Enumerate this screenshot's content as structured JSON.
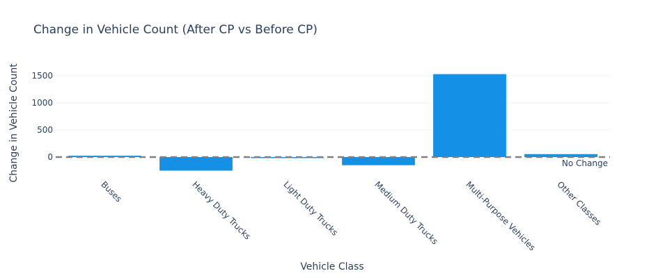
{
  "chart_data": {
    "type": "bar",
    "title": "Change in Vehicle Count (After CP vs Before CP)",
    "xlabel": "Vehicle Class",
    "ylabel": "Change in Vehicle Count",
    "categories": [
      "Buses",
      "Heavy Duty Trucks",
      "Light Duty Trucks",
      "Medium Duty Trucks",
      "Multi-Purpose Vehicles",
      "Other Classes"
    ],
    "values": [
      25,
      -250,
      -10,
      -150,
      1530,
      55
    ],
    "ylim": [
      -330,
      1850
    ],
    "yticks": [
      0,
      500,
      1000,
      1500
    ],
    "bar_color": "#1491e6",
    "reference_line": {
      "y": 0,
      "label": "No Change",
      "color": "#808080",
      "style": "dashed"
    },
    "grid": true
  }
}
